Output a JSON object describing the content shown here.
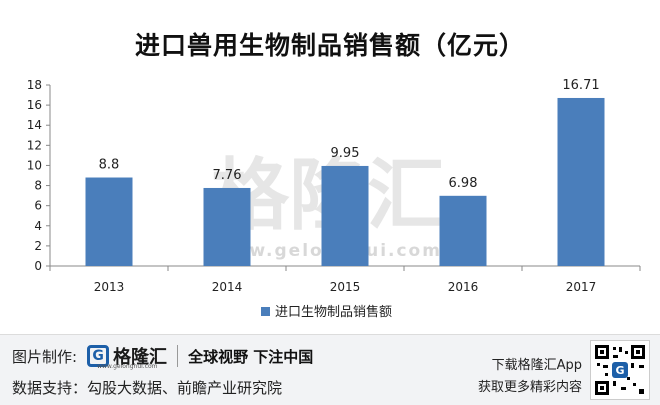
{
  "chart_data": {
    "type": "bar",
    "title": "进口兽用生物制品销售额（亿元）",
    "categories": [
      "2013",
      "2014",
      "2015",
      "2016",
      "2017"
    ],
    "series": [
      {
        "name": "进口生物制品销售额",
        "values": [
          8.8,
          7.76,
          9.95,
          6.98,
          16.71
        ],
        "color": "#4a7ebb"
      }
    ],
    "data_labels": [
      "8.8",
      "7.76",
      "9.95",
      "6.98",
      "16.71"
    ],
    "ylim": [
      0,
      18
    ],
    "yticks": [
      "0",
      "2",
      "4",
      "6",
      "8",
      "10",
      "12",
      "14",
      "16",
      "18"
    ],
    "grid": false,
    "legend_position": "bottom"
  },
  "watermark": {
    "text": "格隆汇",
    "url": "www.gelonghui.com"
  },
  "footer": {
    "made_by_label": "图片制作:",
    "logo_name": "格隆汇",
    "logo_url": "www.gelonghui.com",
    "slogan": "全球视野 下注中国",
    "source_label": "数据支持：",
    "source_text": "勾股大数据、前瞻产业研究院",
    "download_text": "下载格隆汇App",
    "more_text": "获取更多精彩内容"
  },
  "colors": {
    "bar": "#4a7ebb",
    "footer_bg": "#f2f3f5",
    "logo_blue": "#1d5fa8"
  }
}
